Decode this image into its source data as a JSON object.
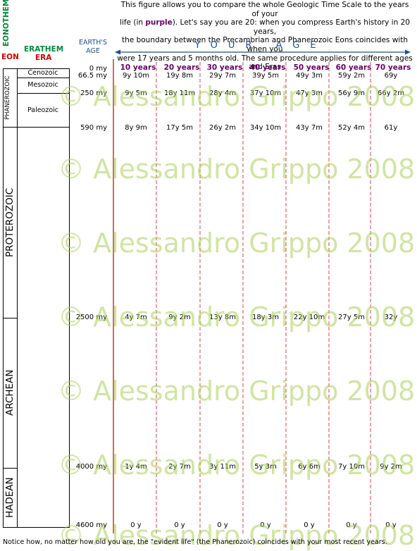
{
  "intro": {
    "line1": "This figure allows you to compare the whole Geologic Time Scale to the years of your",
    "line2_a": "life (in ",
    "line2_bold": "purple",
    "line2_b": "). Let's say you are 20: when you compress Earth's history in 20 years,",
    "line3": "the boundary between the Precambrian and Phanerozoic Eons coincides with when you",
    "line4": "were 17 years and 5 months old. The same procedure applies for different ages and Eras"
  },
  "headers": {
    "eonothem": "EONOTHEM",
    "eon": "EON",
    "erathem": "ERATHEM",
    "era": "ERA",
    "earths_age": "EARTH'S AGE",
    "your_age": "YOUR AGE"
  },
  "columns": [
    "10 years",
    "20 years",
    "30 years",
    "40 years",
    "50 years",
    "60 years",
    "70 years"
  ],
  "eons": [
    "PHANEROZOIC",
    "PROTEROZOIC",
    "ARCHEAN",
    "HADEAN"
  ],
  "eras": [
    "Cenozoic",
    "Mesozoic",
    "Paleozoic"
  ],
  "rows": [
    {
      "age": "0 my",
      "cells": [
        "",
        "",
        "",
        "",
        "",
        "",
        ""
      ]
    },
    {
      "age": "66.5 my",
      "cells": [
        "9y 10m",
        "19y 8m",
        "29y 7m",
        "39y 5m",
        "49y 3m",
        "59y 2m",
        "69y"
      ]
    },
    {
      "age": "250 my",
      "cells": [
        "9y 5m",
        "18y 11m",
        "28y 4m",
        "37y 10m",
        "47y 3m",
        "56y 9m",
        "66y 2m"
      ]
    },
    {
      "age": "590 my",
      "cells": [
        "8y 9m",
        "17y 5m",
        "26y 2m",
        "34y 10m",
        "43y 7m",
        "52y 4m",
        "61y"
      ]
    },
    {
      "age": "2500 my",
      "cells": [
        "4y 7m",
        "9y 2m",
        "13y 8m",
        "18y 3m",
        "22y 10m",
        "27y 5m",
        "32y"
      ]
    },
    {
      "age": "4000 my",
      "cells": [
        "1y 4m",
        "2y 7m",
        "3y 11m",
        "5y 3m",
        "6y 6m",
        "7y 10m",
        "9y 2m"
      ]
    },
    {
      "age": "4600 my",
      "cells": [
        "0 y",
        "0 y",
        "0 y",
        "0 y",
        "0 y",
        "0 y",
        "0 y"
      ]
    }
  ],
  "watermark": "© Alessandro Grippo 2008",
  "footer": "Notice how, no matter how old you are, the \"evident life\" (the Phanerozoic) coincides with your most recent years.",
  "colors": {
    "accent_purple": "#660066",
    "eon_red": "#cc0000",
    "erathem_green": "#00883f",
    "blue": "#1f4e8c",
    "line_red": "#cc3333"
  }
}
